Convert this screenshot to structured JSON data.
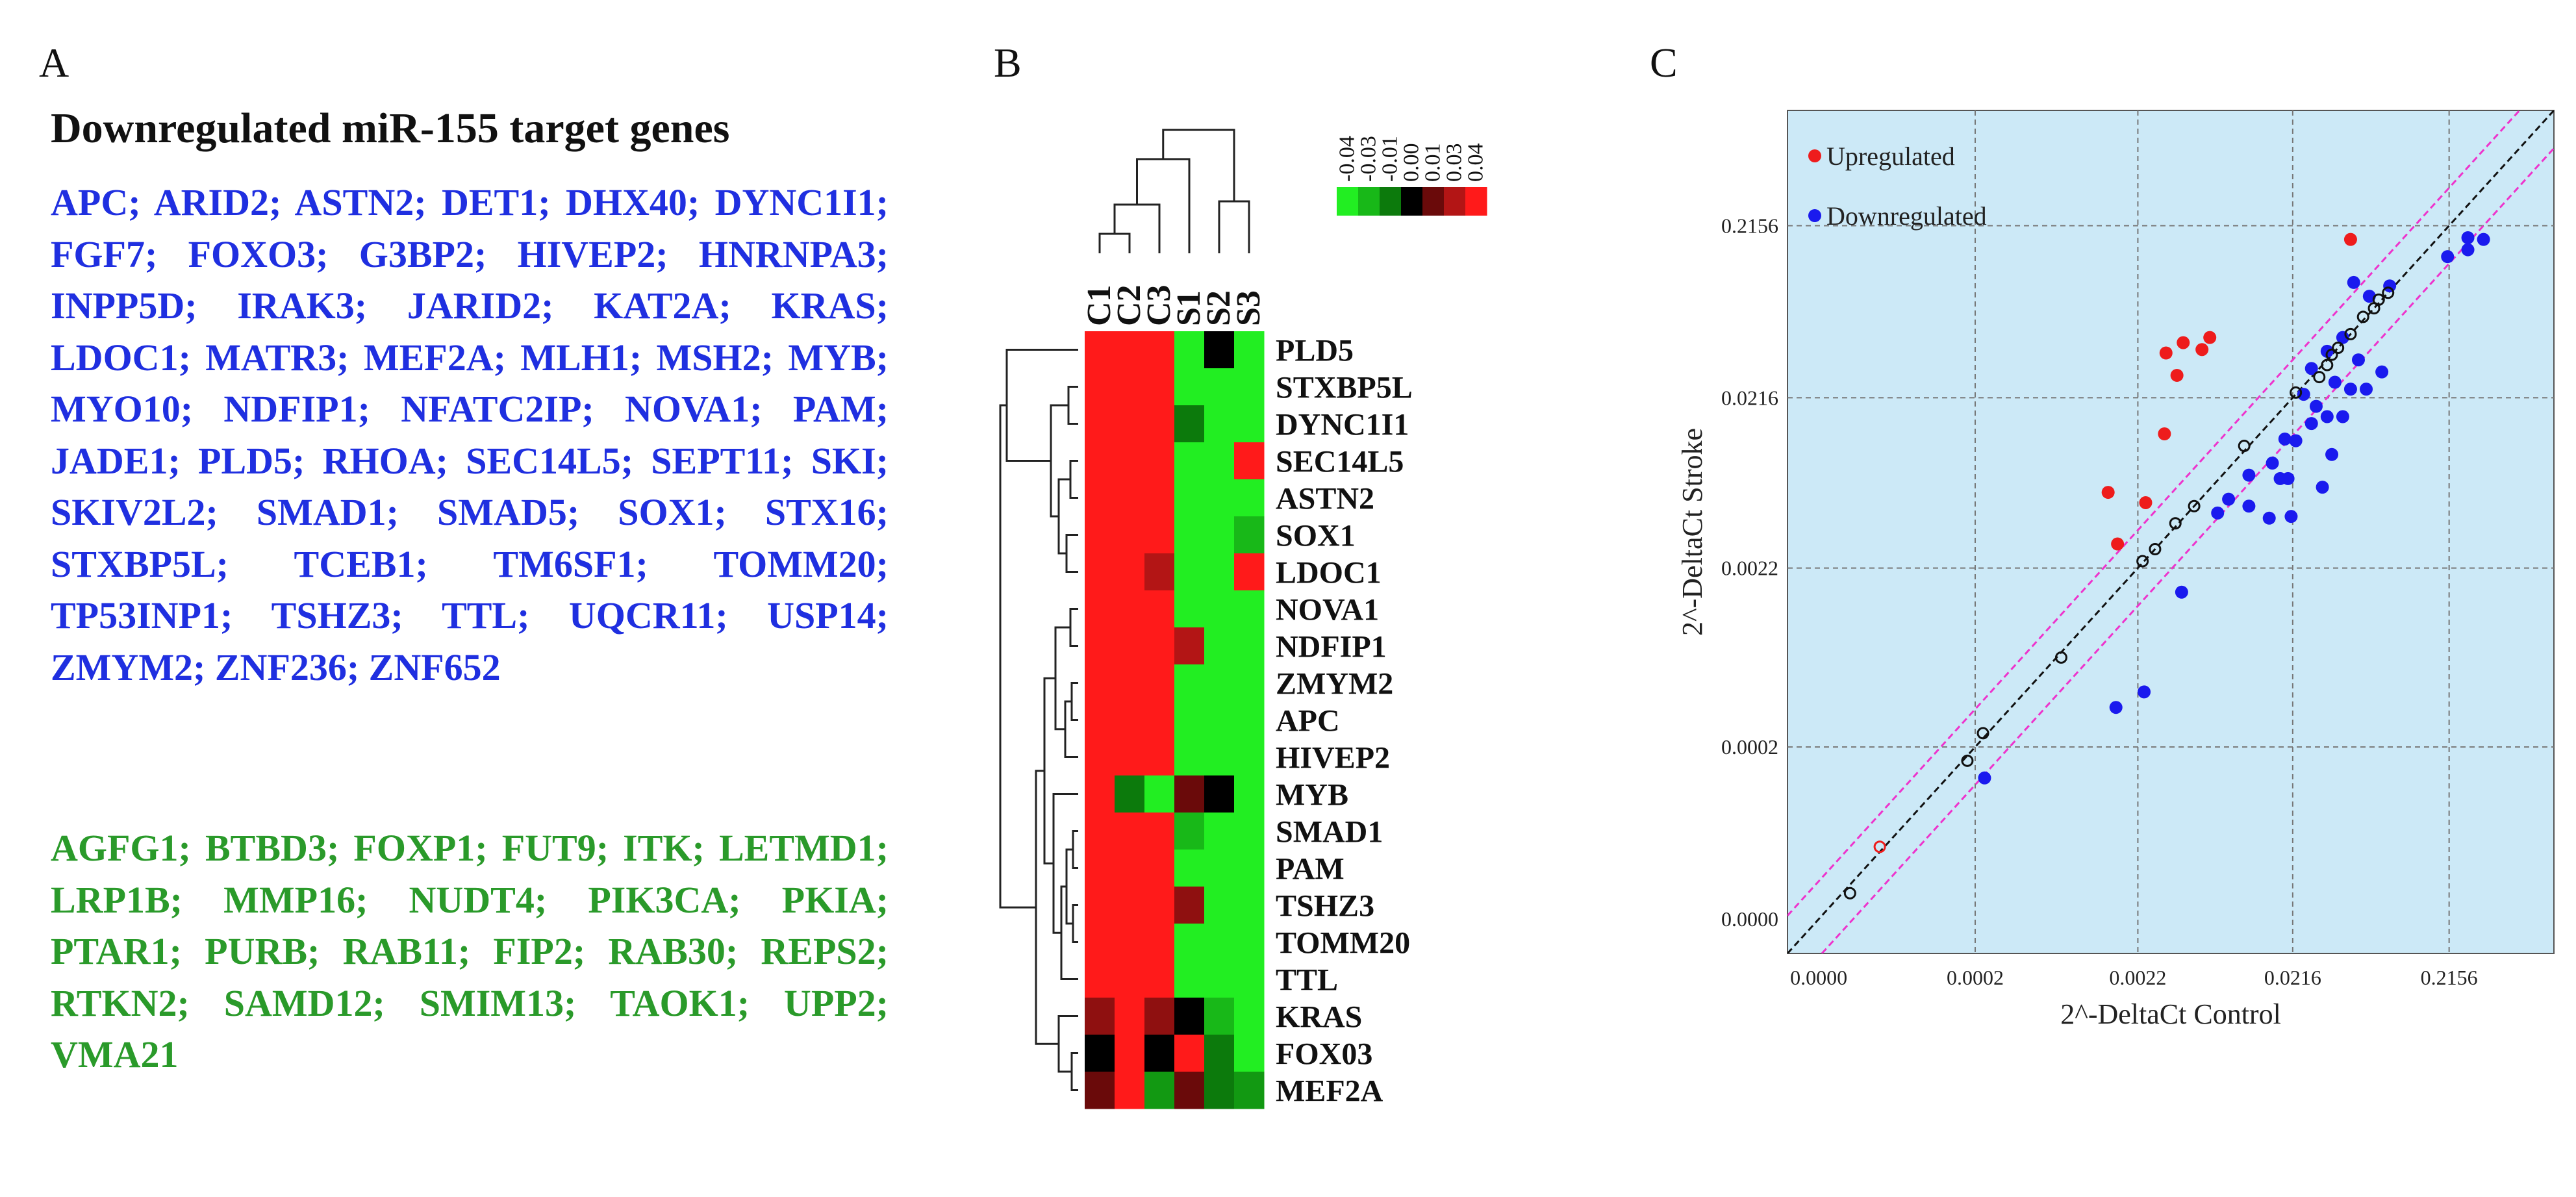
{
  "panelA": {
    "letter": "A",
    "title": "Downregulated miR-155 target genes",
    "blue_genes": "APC; ARID2; ASTN2; DET1; DHX40; DYNC1I1; FGF7; FOXO3; G3BP2; HIVEP2; HNRNPA3; INPP5D; IRAK3; JARID2; KAT2A; KRAS; LDOC1; MATR3; MEF2A; MLH1; MSH2; MYB; MYO10; NDFIP1; NFATC2IP; NOVA1; PAM; JADE1; PLD5; RHOA; SEC14L5; SEPT11; SKI; SKIV2L2; SMAD1; SMAD5; SOX1; STX16; STXBP5L; TCEB1; TM6SF1; TOMM20; TP53INP1; TSHZ3; TTL; UQCR11; USP14; ZMYM2; ZNF236; ZNF652",
    "green_genes": "AGFG1; BTBD3; FOXP1; FUT9; ITK; LETMD1; LRP1B; MMP16; NUDT4; PIK3CA; PKIA; PTAR1; PURB; RAB11; FIP2; RAB30; REPS2; RTKN2; SAMD12; SMIM13; TAOK1; UPP2; VMA21",
    "blue_color": "#1f2fe0",
    "green_color": "#2a9a2a"
  },
  "chart_data": [
    {
      "panel": "B",
      "type": "heatmap",
      "letter": "B",
      "columns": [
        "C1",
        "C2",
        "C3",
        "S1",
        "S2",
        "S3"
      ],
      "rows": [
        "PLD5",
        "STXBP5L",
        "DYNC1I1",
        "SEC14L5",
        "ASTN2",
        "SOX1",
        "LDOC1",
        "NOVA1",
        "NDFIP1",
        "ZMYM2",
        "APC",
        "HIVEP2",
        "MYB",
        "SMAD1",
        "PAM",
        "TSHZ3",
        "TOMM20",
        "TTL",
        "KRAS",
        "FOX03",
        "MEF2A"
      ],
      "values": [
        [
          0.04,
          0.04,
          0.04,
          -0.04,
          0.0,
          -0.04
        ],
        [
          0.04,
          0.04,
          0.04,
          -0.04,
          -0.04,
          -0.04
        ],
        [
          0.04,
          0.04,
          0.04,
          -0.01,
          -0.04,
          -0.04
        ],
        [
          0.04,
          0.04,
          0.04,
          -0.04,
          -0.04,
          0.04
        ],
        [
          0.04,
          0.04,
          0.04,
          -0.04,
          -0.04,
          -0.04
        ],
        [
          0.04,
          0.04,
          0.04,
          -0.04,
          -0.04,
          -0.03
        ],
        [
          0.04,
          0.04,
          0.03,
          -0.04,
          -0.04,
          0.04
        ],
        [
          0.04,
          0.04,
          0.04,
          -0.04,
          -0.04,
          -0.04
        ],
        [
          0.04,
          0.04,
          0.04,
          0.03,
          -0.04,
          -0.04
        ],
        [
          0.04,
          0.04,
          0.04,
          -0.04,
          -0.04,
          -0.04
        ],
        [
          0.04,
          0.04,
          0.04,
          -0.04,
          -0.04,
          -0.04
        ],
        [
          0.04,
          0.04,
          0.04,
          -0.04,
          -0.04,
          -0.04
        ],
        [
          0.04,
          -0.01,
          -0.04,
          0.01,
          0.0,
          -0.04
        ],
        [
          0.04,
          0.04,
          0.04,
          -0.03,
          -0.04,
          -0.04
        ],
        [
          0.04,
          0.04,
          0.04,
          -0.04,
          -0.04,
          -0.04
        ],
        [
          0.04,
          0.04,
          0.04,
          0.02,
          -0.04,
          -0.04
        ],
        [
          0.04,
          0.04,
          0.04,
          -0.04,
          -0.04,
          -0.04
        ],
        [
          0.04,
          0.04,
          0.04,
          -0.04,
          -0.04,
          -0.04
        ],
        [
          0.02,
          0.04,
          0.02,
          0.0,
          -0.03,
          -0.04
        ],
        [
          0.0,
          0.04,
          0.0,
          0.04,
          -0.01,
          -0.04
        ],
        [
          0.01,
          0.04,
          -0.02,
          0.01,
          -0.01,
          -0.02
        ]
      ],
      "color_scale": {
        "ticks": [
          "-0.04",
          "-0.03",
          "-0.01",
          "0.00",
          "0.01",
          "0.03",
          "0.04"
        ],
        "colors": [
          "#22ee22",
          "#18b818",
          "#0c7a0c",
          "#000000",
          "#6a0a0a",
          "#b31515",
          "#ff1a1a"
        ]
      }
    },
    {
      "panel": "C",
      "type": "scatter",
      "letter": "C",
      "xlabel": "2^-DeltaCt Control",
      "ylabel": "2^-DeltaCt Stroke",
      "x_scale": "log",
      "y_scale": "log",
      "axis_range_log10": [
        -4.9,
        0.0
      ],
      "ticks": [
        {
          "label": "0.0000",
          "log10": -4.7
        },
        {
          "label": "0.0002",
          "log10": -3.7
        },
        {
          "label": "0.0022",
          "log10": -2.66
        },
        {
          "label": "0.0216",
          "log10": -1.67
        },
        {
          "label": "0.2156",
          "log10": -0.67
        }
      ],
      "legend": [
        {
          "label": "Upregulated",
          "color": "#ee1c1c"
        },
        {
          "label": "Downregulated",
          "color": "#1a1aee"
        }
      ],
      "background": "#cce9f7",
      "fold_lines_color": "#ee33cc",
      "series": [
        {
          "name": "Upregulated",
          "color": "#ee1c1c",
          "points": [
            [
              -2.85,
              -2.22
            ],
            [
              -2.61,
              -2.28
            ],
            [
              -2.79,
              -2.52
            ],
            [
              -2.49,
              -1.88
            ],
            [
              -2.41,
              -1.54
            ],
            [
              -2.48,
              -1.41
            ],
            [
              -2.37,
              -1.35
            ],
            [
              -2.25,
              -1.39
            ],
            [
              -2.2,
              -1.32
            ],
            [
              -1.3,
              -0.75
            ]
          ]
        },
        {
          "name": "Downregulated",
          "color": "#1a1aee",
          "points": [
            [
              -1.55,
              -1.5
            ],
            [
              -1.45,
              -1.4
            ],
            [
              -1.35,
              -1.32
            ],
            [
              -1.6,
              -1.65
            ],
            [
              -1.4,
              -1.58
            ],
            [
              -1.25,
              -1.45
            ],
            [
              -1.2,
              -1.62
            ],
            [
              -1.1,
              -1.52
            ],
            [
              -1.45,
              -1.78
            ],
            [
              -1.55,
              -1.82
            ],
            [
              -1.35,
              -1.78
            ],
            [
              -1.72,
              -1.91
            ],
            [
              -1.8,
              -2.05
            ],
            [
              -1.95,
              -2.12
            ],
            [
              -1.7,
              -2.14
            ],
            [
              -2.08,
              -2.26
            ],
            [
              -1.82,
              -2.37
            ],
            [
              -1.68,
              -2.36
            ],
            [
              -2.38,
              -2.8
            ],
            [
              -2.8,
              -3.47
            ],
            [
              -2.62,
              -3.38
            ],
            [
              -3.64,
              -3.88
            ],
            [
              -1.28,
              -1.0
            ],
            [
              -1.18,
              -1.08
            ],
            [
              -1.05,
              -1.02
            ],
            [
              -0.68,
              -0.85
            ],
            [
              -0.55,
              -0.74
            ],
            [
              -0.55,
              -0.81
            ],
            [
              -0.45,
              -0.75
            ],
            [
              -1.75,
              -2.14
            ],
            [
              -1.48,
              -2.19
            ],
            [
              -1.95,
              -2.3
            ],
            [
              -2.15,
              -2.34
            ],
            [
              -1.3,
              -1.62
            ],
            [
              -1.42,
              -2.0
            ],
            [
              -1.65,
              -1.92
            ],
            [
              -1.52,
              -1.72
            ]
          ]
        },
        {
          "name": "Unchanged",
          "color": "#111111",
          "points": [
            [
              -4.5,
              -4.55
            ],
            [
              -3.75,
              -3.78
            ],
            [
              -3.15,
              -3.18
            ],
            [
              -2.63,
              -2.62
            ],
            [
              -2.55,
              -2.55
            ],
            [
              -2.42,
              -2.4
            ],
            [
              -2.3,
              -2.3
            ],
            [
              -1.98,
              -1.95
            ],
            [
              -1.65,
              -1.64
            ],
            [
              -1.45,
              -1.48
            ],
            [
              -1.38,
              -1.38
            ],
            [
              -1.3,
              -1.3
            ],
            [
              -1.22,
              -1.2
            ],
            [
              -1.12,
              -1.1
            ],
            [
              -1.5,
              -1.55
            ],
            [
              -1.42,
              -1.42
            ],
            [
              -1.06,
              -1.06
            ],
            [
              -1.15,
              -1.15
            ],
            [
              -3.65,
              -3.62
            ]
          ]
        },
        {
          "name": "Unchanged (red open)",
          "color": "#ee1c1c",
          "points": [
            [
              -4.31,
              -4.28
            ]
          ]
        }
      ]
    }
  ]
}
